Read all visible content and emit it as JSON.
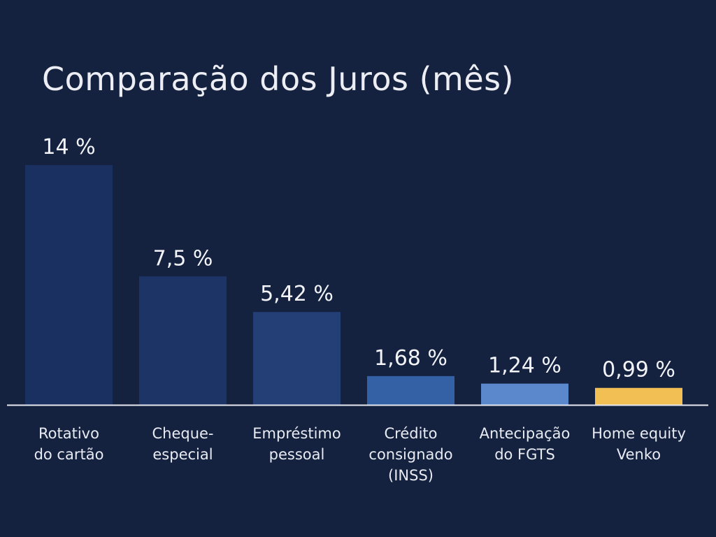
{
  "chart_data": {
    "type": "bar",
    "title": "Comparação dos Juros (mês)",
    "categories": [
      [
        "Rotativo",
        "do cartão"
      ],
      [
        "Cheque-",
        "especial"
      ],
      [
        "Empréstimo",
        "pessoal"
      ],
      [
        "Crédito",
        "consignado",
        "(INSS)"
      ],
      [
        "Antecipação",
        "do FGTS"
      ],
      [
        "Home equity",
        "Venko"
      ]
    ],
    "values": [
      14,
      7.5,
      5.42,
      1.68,
      1.24,
      0.99
    ],
    "value_labels": [
      "14 %",
      "7,5 %",
      "5,42 %",
      "1,68 %",
      "1,24 %",
      "0,99 %"
    ],
    "bar_colors": [
      "#1a3060",
      "#1c3566",
      "#233f75",
      "#3461a6",
      "#5b87cc",
      "#f2bf55"
    ],
    "axis_color": "#e6e9ef",
    "background": "#14213f",
    "xlabel": "",
    "ylabel": ""
  }
}
